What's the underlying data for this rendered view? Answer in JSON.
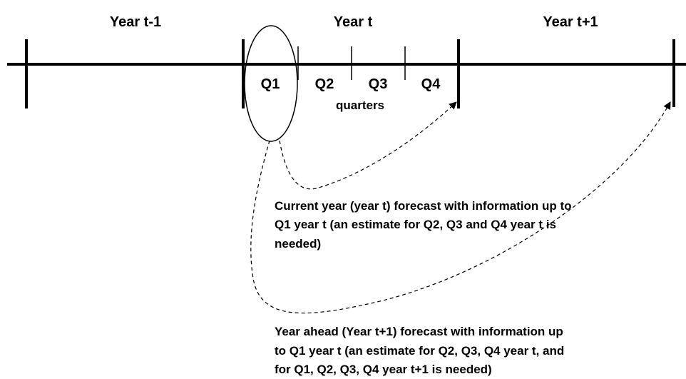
{
  "years": [
    "Year t-1",
    "Year t",
    "Year t+1"
  ],
  "quarters": [
    "Q1",
    "Q2",
    "Q3",
    "Q4"
  ],
  "quarters_caption": "quarters",
  "annotations": [
    {
      "lines": [
        "Current year (year t) forecast with information up to",
        "Q1 year t (an estimate for Q2, Q3 and Q4 year t is",
        "needed)"
      ]
    },
    {
      "lines": [
        "Year ahead (Year t+1) forecast with information up",
        "to Q1 year t (an estimate for Q2, Q3, Q4 year t, and",
        "for Q1, Q2, Q3, Q4 year t+1 is needed)"
      ]
    }
  ]
}
